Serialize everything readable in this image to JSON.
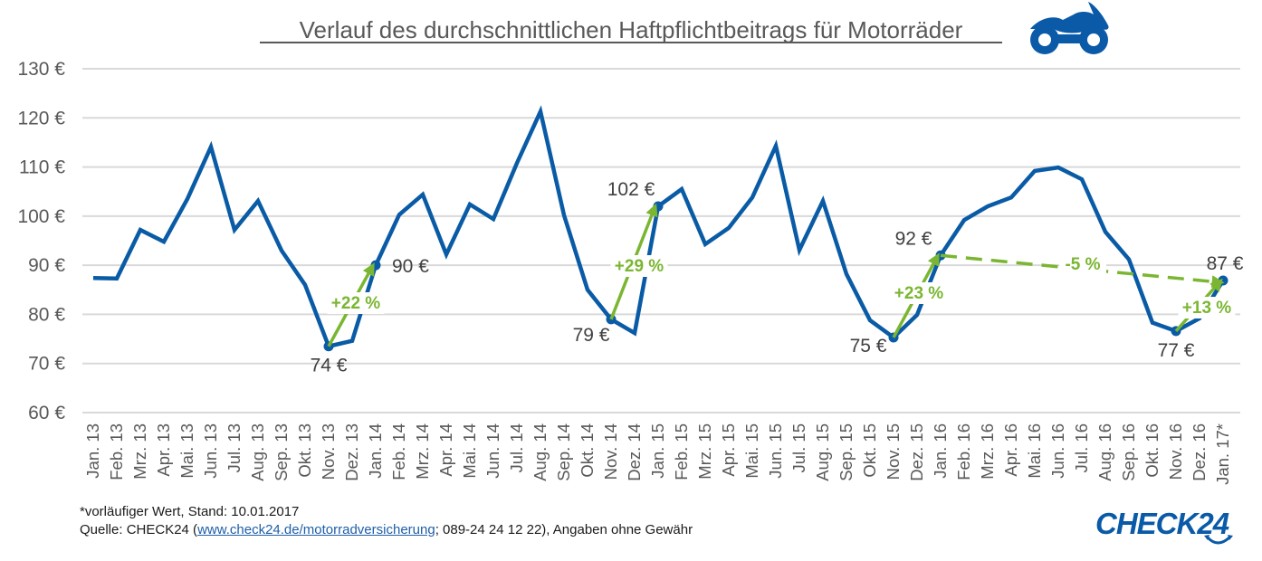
{
  "chart_data": {
    "type": "line",
    "title": "Verlauf des durchschnittlichen Haftpflichtbeitrags für Motorräder",
    "xlabel": "",
    "ylabel": "",
    "ylim": [
      60,
      130
    ],
    "yticks": [
      60,
      70,
      80,
      90,
      100,
      110,
      120,
      130
    ],
    "ytick_labels": [
      "60 €",
      "70 €",
      "80 €",
      "90 €",
      "100 €",
      "110 €",
      "120 €",
      "130 €"
    ],
    "grid": true,
    "legend": "none",
    "categories": [
      "Jan. 13",
      "Feb. 13",
      "Mrz. 13",
      "Apr. 13",
      "Mai. 13",
      "Jun. 13",
      "Jul. 13",
      "Aug. 13",
      "Sep. 13",
      "Okt. 13",
      "Nov. 13",
      "Dez. 13",
      "Jan. 14",
      "Feb. 14",
      "Mrz. 14",
      "Apr. 14",
      "Mai. 14",
      "Jun. 14",
      "Jul. 14",
      "Aug. 14",
      "Sep. 14",
      "Okt. 14",
      "Nov. 14",
      "Dez. 14",
      "Jan. 15",
      "Feb. 15",
      "Mrz. 15",
      "Apr. 15",
      "Mai. 15",
      "Jun. 15",
      "Jul. 15",
      "Aug. 15",
      "Sep. 15",
      "Okt. 15",
      "Nov. 15",
      "Dez. 15",
      "Jan. 16",
      "Feb. 16",
      "Mrz. 16",
      "Apr. 16",
      "Mai. 16",
      "Jun. 16",
      "Jul. 16",
      "Aug. 16",
      "Sep. 16",
      "Okt. 16",
      "Nov. 16",
      "Dez. 16",
      "Jan. 17*"
    ],
    "series": [
      {
        "name": "Durchschnittlicher Haftpflichtbeitrag",
        "color": "#0a5ba6",
        "values": [
          87.4,
          87.3,
          97.2,
          94.8,
          103.5,
          114.1,
          97.2,
          103.1,
          93.0,
          86.0,
          73.5,
          74.6,
          90.0,
          100.3,
          104.4,
          92.2,
          102.4,
          99.4,
          110.8,
          121.3,
          100.2,
          85.0,
          79.0,
          76.2,
          102.0,
          105.5,
          94.3,
          97.6,
          103.8,
          114.3,
          93.1,
          103.1,
          88.2,
          78.8,
          75.3,
          79.9,
          92.0,
          99.2,
          102.0,
          103.8,
          109.2,
          109.9,
          107.5,
          96.8,
          91.2,
          78.3,
          76.6,
          79.2,
          86.9
        ]
      }
    ],
    "point_labels": [
      {
        "index": 10,
        "text": "74 €",
        "pos": "below"
      },
      {
        "index": 12,
        "text": "90 €",
        "pos": "right"
      },
      {
        "index": 22,
        "text": "79 €",
        "pos": "below-left"
      },
      {
        "index": 24,
        "text": "102 €",
        "pos": "above-left"
      },
      {
        "index": 34,
        "text": "75 €",
        "pos": "left"
      },
      {
        "index": 36,
        "text": "92 €",
        "pos": "above-left"
      },
      {
        "index": 46,
        "text": "77 €",
        "pos": "below"
      },
      {
        "index": 48,
        "text": "87 €",
        "pos": "above"
      }
    ],
    "annotations": [
      {
        "from": 10,
        "to": 12,
        "text": "+22 %",
        "style": "solid"
      },
      {
        "from": 22,
        "to": 24,
        "text": "+29 %",
        "style": "solid"
      },
      {
        "from": 34,
        "to": 36,
        "text": "+23 %",
        "style": "solid"
      },
      {
        "from": 36,
        "to": 48,
        "text": "-5 %",
        "style": "dashed"
      },
      {
        "from": 46,
        "to": 48,
        "text": "+13 %",
        "style": "solid"
      }
    ],
    "annotation_color": "#7ab631"
  },
  "footer": {
    "note": "*vorläufiger Wert, Stand: 10.01.2017",
    "source_prefix": "Quelle: CHECK24 (",
    "source_link": "www.check24.de/motorradversicherung",
    "source_suffix": "; 089-24 24 12 22), Angaben ohne Gewähr"
  },
  "brand": {
    "logo_text": "CHECK24",
    "icon": "motorcycle-icon",
    "color": "#0a5aa8"
  }
}
